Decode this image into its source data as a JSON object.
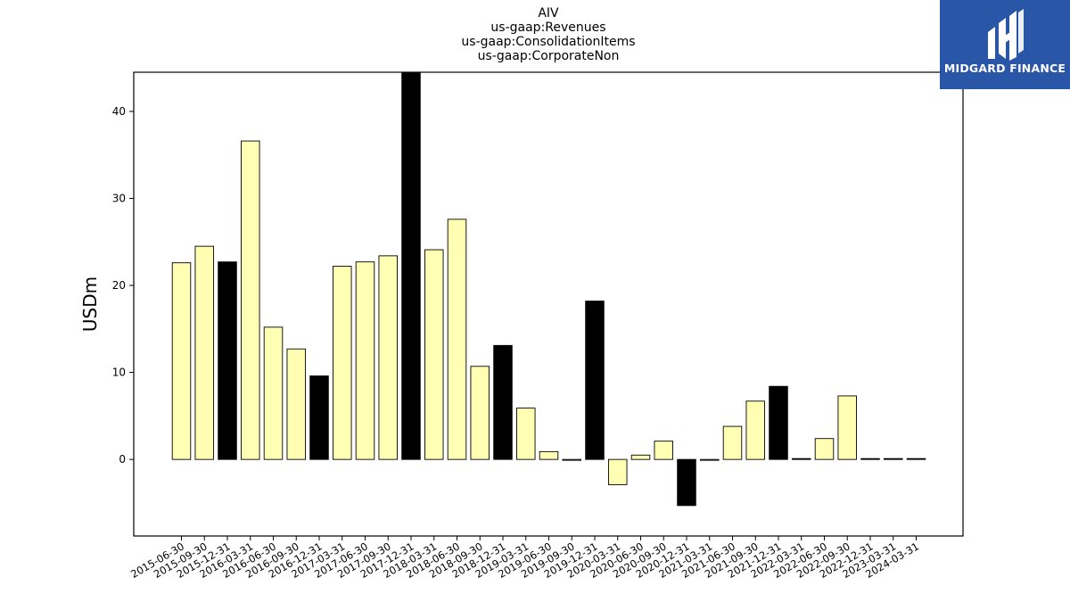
{
  "title_lines": [
    "AIV",
    "us-gaap:Revenues",
    "us-gaap:ConsolidationItems",
    "us-gaap:CorporateNon"
  ],
  "logo": {
    "text": "MIDGARD FINANCE",
    "bg_color": "#2a56a8"
  },
  "chart_data": {
    "type": "bar",
    "ylabel": "USDm",
    "xlabel": "",
    "ylim": [
      -8.8,
      44.5
    ],
    "yticks": [
      0,
      10,
      20,
      30,
      40
    ],
    "grid": false,
    "colors": {
      "default": "#ffffb3",
      "highlight": "#000000",
      "edge": "#000000"
    },
    "categories": [
      "2015-06-30",
      "2015-09-30",
      "2015-12-31",
      "2016-03-31",
      "2016-06-30",
      "2016-09-30",
      "2016-12-31",
      "2017-03-31",
      "2017-06-30",
      "2017-09-30",
      "2017-12-31",
      "2018-03-31",
      "2018-06-30",
      "2018-09-30",
      "2018-12-31",
      "2019-03-31",
      "2019-06-30",
      "2019-09-30",
      "2019-12-31",
      "2020-03-31",
      "2020-06-30",
      "2020-09-30",
      "2020-12-31",
      "2021-03-31",
      "2021-06-30",
      "2021-09-30",
      "2021-12-31",
      "2022-03-31",
      "2022-06-30",
      "2022-09-30",
      "2022-12-31",
      "2023-03-31",
      "2024-03-31"
    ],
    "values": [
      22.6,
      24.5,
      22.7,
      36.6,
      15.2,
      12.7,
      9.6,
      22.2,
      22.7,
      23.4,
      44.5,
      24.1,
      27.6,
      10.7,
      13.1,
      5.9,
      0.9,
      0.0,
      18.2,
      -2.9,
      0.5,
      2.1,
      -5.3,
      0.0,
      3.8,
      6.7,
      8.4,
      0.1,
      2.4,
      7.3,
      0.1,
      0.1,
      0.1
    ],
    "highlight": [
      false,
      false,
      true,
      false,
      false,
      false,
      true,
      false,
      false,
      false,
      true,
      false,
      false,
      false,
      true,
      false,
      false,
      false,
      true,
      false,
      false,
      false,
      true,
      false,
      false,
      false,
      true,
      true,
      false,
      false,
      true,
      true,
      true
    ]
  }
}
